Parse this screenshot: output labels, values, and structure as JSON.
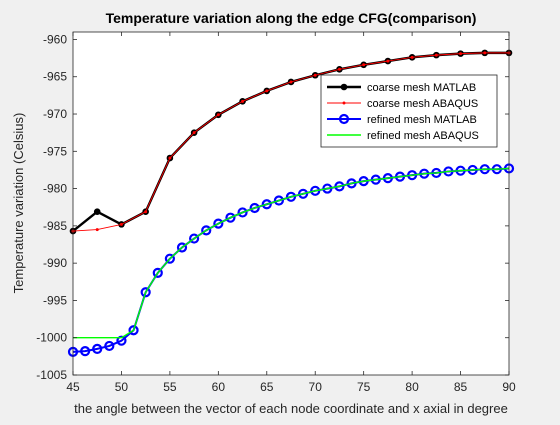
{
  "chart_data": {
    "type": "line",
    "title": "Temperature variation along the edge CFG(comparison)",
    "xlabel": "the angle between the vector of each node coordinate and x axial in degree",
    "ylabel": "Temperature variation (Celsius)",
    "xlim": [
      45,
      90
    ],
    "ylim": [
      -1005,
      -959
    ],
    "xticks": [
      45,
      50,
      55,
      60,
      65,
      70,
      75,
      80,
      85,
      90
    ],
    "yticks": [
      -960,
      -965,
      -970,
      -975,
      -980,
      -985,
      -990,
      -995,
      -1000,
      -1005
    ],
    "grid": false,
    "legend_position": "top-right",
    "series": [
      {
        "name": "coarse mesh MATLAB",
        "color": "#000000",
        "marker": "filled-circle",
        "x": [
          45,
          47.5,
          50,
          52.5,
          55,
          57.5,
          60,
          62.5,
          65,
          67.5,
          70,
          72.5,
          75,
          77.5,
          80,
          82.5,
          85,
          87.5,
          90
        ],
        "y": [
          -985.7,
          -983.1,
          -984.8,
          -983.1,
          -975.9,
          -972.5,
          -970.1,
          -968.3,
          -966.9,
          -965.7,
          -964.8,
          -964.0,
          -963.4,
          -962.9,
          -962.4,
          -962.1,
          -961.9,
          -961.8,
          -961.8
        ]
      },
      {
        "name": "coarse mesh ABAQUS",
        "color": "#ff0000",
        "marker": "dot",
        "x": [
          45,
          47.5,
          50,
          52.5,
          55,
          57.5,
          60,
          62.5,
          65,
          67.5,
          70,
          72.5,
          75,
          77.5,
          80,
          82.5,
          85,
          87.5,
          90
        ],
        "y": [
          -985.7,
          -985.5,
          -984.8,
          -983.1,
          -975.9,
          -972.5,
          -970.1,
          -968.3,
          -966.9,
          -965.7,
          -964.8,
          -964.0,
          -963.4,
          -962.9,
          -962.4,
          -962.1,
          -961.9,
          -961.8,
          -961.8
        ]
      },
      {
        "name": "refined mesh MATLAB",
        "color": "#0000ff",
        "marker": "open-circle",
        "x": [
          45,
          46.25,
          47.5,
          48.75,
          50,
          51.25,
          52.5,
          53.75,
          55,
          56.25,
          57.5,
          58.75,
          60,
          61.25,
          62.5,
          63.75,
          65,
          66.25,
          67.5,
          68.75,
          70,
          71.25,
          72.5,
          73.75,
          75,
          76.25,
          77.5,
          78.75,
          80,
          81.25,
          82.5,
          83.75,
          85,
          86.25,
          87.5,
          88.75,
          90
        ],
        "y": [
          -1001.9,
          -1001.8,
          -1001.5,
          -1001.1,
          -1000.4,
          -999.0,
          -993.9,
          -991.3,
          -989.4,
          -987.9,
          -986.7,
          -985.6,
          -984.7,
          -983.9,
          -983.2,
          -982.6,
          -982.1,
          -981.6,
          -981.1,
          -980.7,
          -980.3,
          -980.0,
          -979.7,
          -979.3,
          -979.0,
          -978.8,
          -978.6,
          -978.4,
          -978.2,
          -978.0,
          -977.9,
          -977.7,
          -977.6,
          -977.5,
          -977.4,
          -977.4,
          -977.3
        ]
      },
      {
        "name": "refined mesh ABAQUS",
        "color": "#00ff00",
        "marker": "none",
        "x": [
          45,
          46.25,
          47.5,
          48.75,
          50,
          51.25,
          52.5,
          53.75,
          55,
          56.25,
          57.5,
          58.75,
          60,
          61.25,
          62.5,
          63.75,
          65,
          66.25,
          67.5,
          68.75,
          70,
          71.25,
          72.5,
          73.75,
          75,
          76.25,
          77.5,
          78.75,
          80,
          81.25,
          82.5,
          83.75,
          85,
          86.25,
          87.5,
          88.75,
          90
        ],
        "y": [
          -1000.0,
          -1000.0,
          -1000.0,
          -1000.0,
          -1000.0,
          -999.0,
          -993.9,
          -991.3,
          -989.4,
          -987.9,
          -986.7,
          -985.6,
          -984.7,
          -983.9,
          -983.2,
          -982.6,
          -982.1,
          -981.6,
          -981.1,
          -980.7,
          -980.3,
          -980.0,
          -979.7,
          -979.3,
          -979.0,
          -978.8,
          -978.6,
          -978.4,
          -978.2,
          -978.0,
          -977.9,
          -977.7,
          -977.6,
          -977.5,
          -977.4,
          -977.4,
          -977.3
        ]
      }
    ]
  }
}
